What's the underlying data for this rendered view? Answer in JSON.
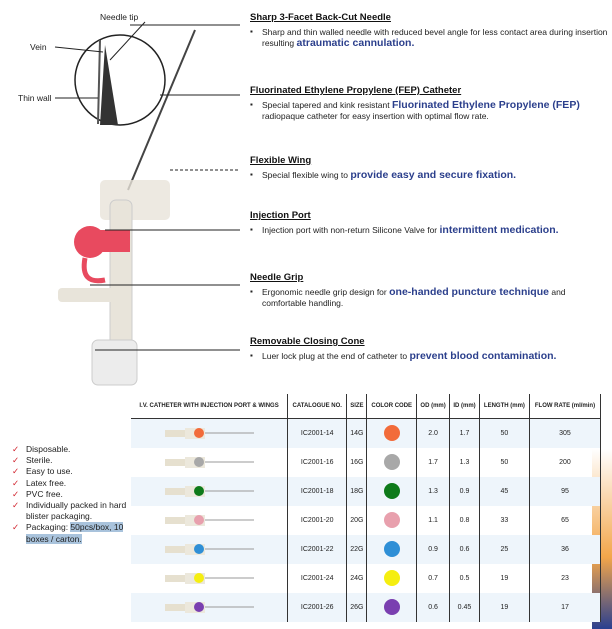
{
  "diagram": {
    "needle_tip": "Needle tip",
    "vein": "Vein",
    "thin_wall": "Thin wall"
  },
  "annotations": [
    {
      "title": "Sharp 3-Facet Back-Cut Needle",
      "text": "Sharp and thin walled needle with reduced bevel angle for less contact area during insertion resulting",
      "highlight": "atraumatic cannulation."
    },
    {
      "title": "Fluorinated Ethylene Propylene (FEP) Catheter",
      "text": "Special tapered and kink resistant",
      "highlight": "Fluorinated Ethylene Propylene (FEP)",
      "text2": "radiopaque catheter for easy insertion with optimal flow rate."
    },
    {
      "title": "Flexible Wing",
      "text": "Special flexible wing to",
      "highlight": "provide easy and secure fixation."
    },
    {
      "title": "Injection Port",
      "text": "Injection port with non-return Silicone Valve for",
      "highlight": "intermittent medication."
    },
    {
      "title": "Needle Grip",
      "text": "Ergonomic needle grip design for",
      "highlight": "one-handed puncture technique",
      "text2": "and comfortable handling."
    },
    {
      "title": "Removable Closing Cone",
      "text": "Luer lock plug at the end of catheter to",
      "highlight": "prevent blood contamination."
    }
  ],
  "features": [
    "Disposable.",
    "Sterile.",
    "Easy to use.",
    "Latex free.",
    "PVC free.",
    "Individually packed in hard blister packaging.",
    "Packaging: 50pcs/box, 10 boxes / carton."
  ],
  "table": {
    "headers": [
      "I.V. CATHETER WITH INJECTION PORT & WINGS",
      "CATALOGUE NO.",
      "SIZE",
      "COLOR CODE",
      "OD (mm)",
      "ID (mm)",
      "LENGTH (mm)",
      "FLOW RATE (ml/min)"
    ],
    "rows": [
      {
        "cat": "IC2001-14",
        "size": "14G",
        "color": "#f26b3a",
        "od": "2.0",
        "id": "1.7",
        "len": "50",
        "flow": "305"
      },
      {
        "cat": "IC2001-16",
        "size": "16G",
        "color": "#a8a8a8",
        "od": "1.7",
        "id": "1.3",
        "len": "50",
        "flow": "200"
      },
      {
        "cat": "IC2001-18",
        "size": "18G",
        "color": "#0e7a1a",
        "od": "1.3",
        "id": "0.9",
        "len": "45",
        "flow": "95"
      },
      {
        "cat": "IC2001-20",
        "size": "20G",
        "color": "#e8a0ad",
        "od": "1.1",
        "id": "0.8",
        "len": "33",
        "flow": "65"
      },
      {
        "cat": "IC2001-22",
        "size": "22G",
        "color": "#2f8fd6",
        "od": "0.9",
        "id": "0.6",
        "len": "25",
        "flow": "36"
      },
      {
        "cat": "IC2001-24",
        "size": "24G",
        "color": "#f5ee10",
        "od": "0.7",
        "id": "0.5",
        "len": "19",
        "flow": "23"
      },
      {
        "cat": "IC2001-26",
        "size": "26G",
        "color": "#7a3fb0",
        "od": "0.6",
        "id": "0.45",
        "len": "19",
        "flow": "17"
      }
    ]
  }
}
